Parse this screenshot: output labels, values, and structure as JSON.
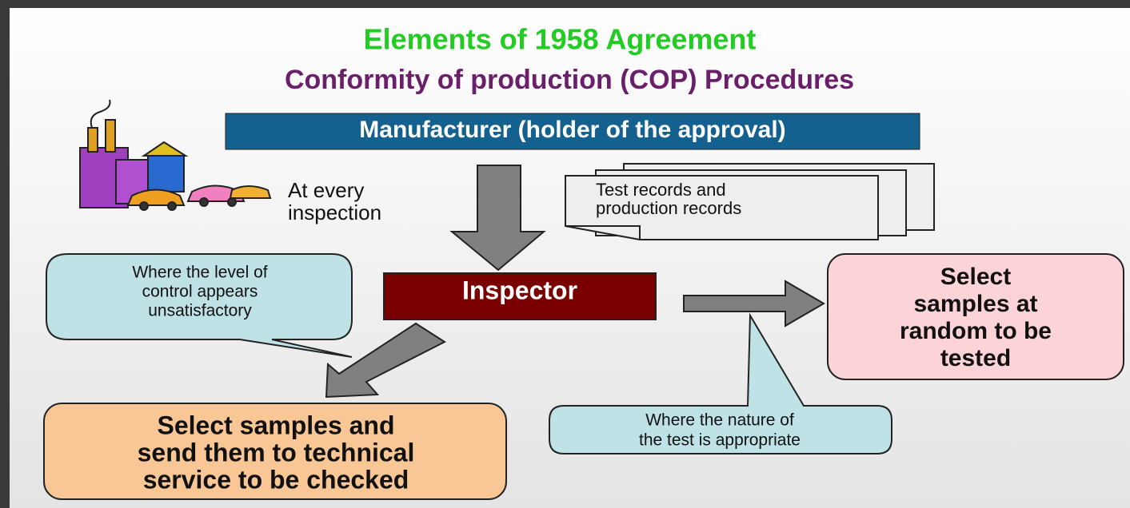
{
  "header": {
    "title": "Elements of 1958 Agreement",
    "subtitle": "Conformity of production (COP) Procedures"
  },
  "nodes": [
    {
      "label": [
        "Manufacturer (holder of the approval)"
      ]
    },
    {
      "label": [
        "At every",
        "inspection"
      ]
    },
    {
      "label": [
        "Test records and",
        "production records"
      ]
    },
    {
      "label": [
        "Where the level of",
        "control appears",
        "unsatisfactory"
      ]
    },
    {
      "label": [
        "Inspector"
      ]
    },
    {
      "label": [
        "Select",
        "samples at",
        "random to be",
        "tested"
      ]
    },
    {
      "label": [
        "Select samples and",
        "send them to technical",
        "service to be checked"
      ]
    },
    {
      "label": [
        "Where the nature of",
        "the test is appropriate"
      ]
    }
  ]
}
